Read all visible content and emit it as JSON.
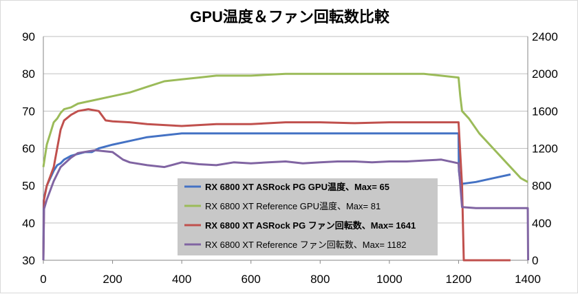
{
  "chart_data": {
    "type": "line",
    "title": "GPU温度＆ファン回転数比較",
    "xlim": [
      0,
      1400
    ],
    "x_ticks": [
      0,
      200,
      400,
      600,
      800,
      1000,
      1200,
      1400
    ],
    "ylim_left": [
      30,
      90
    ],
    "y_ticks_left": [
      30,
      40,
      50,
      60,
      70,
      80,
      90
    ],
    "ylim_right": [
      0,
      2400
    ],
    "y_ticks_right": [
      0,
      400,
      800,
      1200,
      1600,
      2000,
      2400
    ],
    "grid": "horizontal",
    "legend_placement": "center-right",
    "series": [
      {
        "name": "RX 6800 XT ASRock PG GPU温度、Max= 65",
        "axis": "left",
        "color": "#4472c4",
        "bold": true,
        "points": [
          [
            0,
            30
          ],
          [
            1,
            46
          ],
          [
            5,
            48
          ],
          [
            10,
            50
          ],
          [
            20,
            52
          ],
          [
            30,
            54
          ],
          [
            40,
            55.5
          ],
          [
            50,
            56
          ],
          [
            60,
            57
          ],
          [
            80,
            58
          ],
          [
            100,
            58.5
          ],
          [
            120,
            59
          ],
          [
            140,
            59
          ],
          [
            160,
            60
          ],
          [
            200,
            61
          ],
          [
            250,
            62
          ],
          [
            300,
            63
          ],
          [
            350,
            63.5
          ],
          [
            400,
            64
          ],
          [
            500,
            64
          ],
          [
            600,
            64
          ],
          [
            700,
            64
          ],
          [
            800,
            64
          ],
          [
            900,
            64
          ],
          [
            1000,
            64
          ],
          [
            1100,
            64
          ],
          [
            1200,
            64
          ],
          [
            1201,
            54
          ],
          [
            1205,
            51
          ],
          [
            1210,
            50.5
          ],
          [
            1250,
            51
          ],
          [
            1300,
            52
          ],
          [
            1350,
            53
          ]
        ]
      },
      {
        "name": "RX 6800 XT Reference GPU温度、Max= 81",
        "axis": "left",
        "color": "#9bbb59",
        "bold": false,
        "points": [
          [
            0,
            55
          ],
          [
            5,
            58
          ],
          [
            10,
            61
          ],
          [
            20,
            64
          ],
          [
            30,
            67
          ],
          [
            40,
            68
          ],
          [
            50,
            69.5
          ],
          [
            60,
            70.5
          ],
          [
            80,
            71
          ],
          [
            100,
            72
          ],
          [
            150,
            73
          ],
          [
            200,
            74
          ],
          [
            250,
            75
          ],
          [
            300,
            76.5
          ],
          [
            350,
            78
          ],
          [
            400,
            78.5
          ],
          [
            450,
            79
          ],
          [
            500,
            79.5
          ],
          [
            600,
            79.5
          ],
          [
            700,
            80
          ],
          [
            800,
            80
          ],
          [
            900,
            80
          ],
          [
            1000,
            80
          ],
          [
            1100,
            80
          ],
          [
            1200,
            79
          ],
          [
            1205,
            74
          ],
          [
            1210,
            70
          ],
          [
            1230,
            68
          ],
          [
            1260,
            64
          ],
          [
            1300,
            60
          ],
          [
            1340,
            56
          ],
          [
            1380,
            52
          ],
          [
            1400,
            51
          ]
        ]
      },
      {
        "name": "RX 6800 XT ASRock PG ファン回転数、Max= 1641",
        "axis": "right",
        "color": "#c0504d",
        "bold": true,
        "points": [
          [
            0,
            0
          ],
          [
            2,
            650
          ],
          [
            10,
            800
          ],
          [
            20,
            900
          ],
          [
            30,
            1000
          ],
          [
            40,
            1200
          ],
          [
            50,
            1400
          ],
          [
            60,
            1500
          ],
          [
            80,
            1560
          ],
          [
            100,
            1600
          ],
          [
            130,
            1620
          ],
          [
            160,
            1600
          ],
          [
            180,
            1500
          ],
          [
            200,
            1490
          ],
          [
            250,
            1480
          ],
          [
            300,
            1460
          ],
          [
            400,
            1440
          ],
          [
            500,
            1460
          ],
          [
            600,
            1460
          ],
          [
            700,
            1480
          ],
          [
            800,
            1480
          ],
          [
            900,
            1470
          ],
          [
            1000,
            1480
          ],
          [
            1100,
            1480
          ],
          [
            1200,
            1480
          ],
          [
            1210,
            800
          ],
          [
            1215,
            0
          ],
          [
            1350,
            0
          ]
        ]
      },
      {
        "name": "RX 6800 XT Reference ファン回転数、Max= 1182",
        "axis": "right",
        "color": "#8064a2",
        "bold": false,
        "points": [
          [
            0,
            0
          ],
          [
            2,
            550
          ],
          [
            10,
            650
          ],
          [
            20,
            750
          ],
          [
            30,
            850
          ],
          [
            50,
            1000
          ],
          [
            80,
            1100
          ],
          [
            100,
            1150
          ],
          [
            150,
            1180
          ],
          [
            200,
            1160
          ],
          [
            230,
            1080
          ],
          [
            250,
            1050
          ],
          [
            300,
            1020
          ],
          [
            350,
            1000
          ],
          [
            400,
            1050
          ],
          [
            450,
            1030
          ],
          [
            500,
            1020
          ],
          [
            550,
            1050
          ],
          [
            600,
            1040
          ],
          [
            650,
            1050
          ],
          [
            700,
            1060
          ],
          [
            750,
            1040
          ],
          [
            800,
            1050
          ],
          [
            850,
            1060
          ],
          [
            900,
            1060
          ],
          [
            950,
            1050
          ],
          [
            1000,
            1060
          ],
          [
            1050,
            1060
          ],
          [
            1100,
            1070
          ],
          [
            1150,
            1080
          ],
          [
            1200,
            1040
          ],
          [
            1210,
            570
          ],
          [
            1250,
            560
          ],
          [
            1300,
            560
          ],
          [
            1350,
            560
          ],
          [
            1400,
            560
          ],
          [
            1401,
            0
          ]
        ]
      }
    ]
  }
}
